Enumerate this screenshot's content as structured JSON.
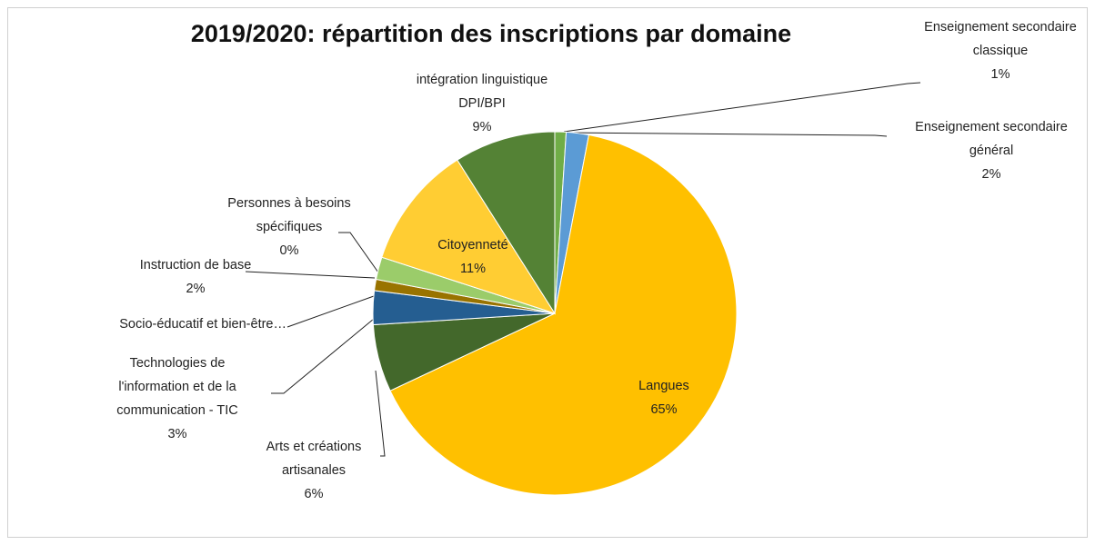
{
  "chart_data": {
    "type": "pie",
    "title": "2019/2020: répartition des inscriptions par domaine",
    "categories": [
      "Enseignement secondaire classique",
      "Enseignement secondaire général",
      "Langues",
      "Arts et créations artisanales",
      "Technologies de l'information et de la communication - TIC",
      "Socio-éducatif et bien-être…",
      "Instruction de base",
      "Personnes à besoins spécifiques",
      "Citoyenneté",
      "intégration linguistique DPI/BPI"
    ],
    "values": [
      1,
      2,
      65,
      6,
      3,
      1,
      2,
      0,
      11,
      9
    ],
    "value_labels": [
      "1%",
      "2%",
      "65%",
      "6%",
      "3%",
      null,
      "2%",
      "0%",
      "11%",
      "9%"
    ],
    "colors": [
      "#70ad47",
      "#5b9bd5",
      "#ffc000",
      "#43682b",
      "#255e91",
      "#997300",
      "#9bcc6a",
      "#a5a5a5",
      "#ffcd33",
      "#548235"
    ]
  }
}
